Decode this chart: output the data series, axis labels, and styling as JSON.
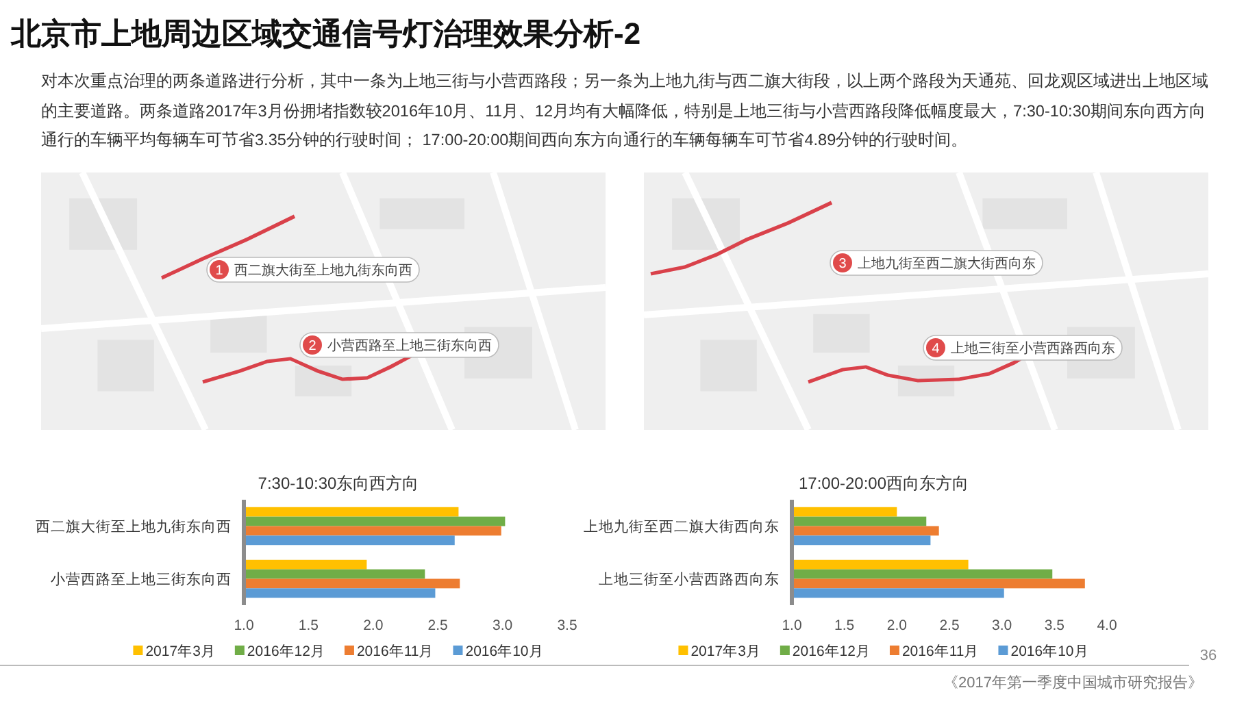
{
  "chart_data": [
    {
      "type": "other",
      "title": "北京市上地周边区域交通信号灯治理效果分析-2",
      "subtitle": "对本次重点治理的两条道路进行分析，其中一条为上地三街与小营西路段；另一条为上地九街与西二旗大街段，以上两个路段为天通苑、回龙观区域进出上地区域的主要道路。两条道路2017年3月份拥堵指数较2016年10月、11月、12月均有大幅降低，特别是上地三街与小营西路段降低幅度最大，7:30-10:30期间东向西方向通行的车辆平均每辆车可节省3.35分钟的行驶时间； 17:00-20:00期间西向东方向通行的车辆每辆车可节省4.89分钟的行驶时间。",
      "annotations": [
        "36",
        "《2017年第一季度中国城市研究报告》"
      ]
    },
    {
      "type": "bar",
      "orientation": "horizontal",
      "title": "7:30-10:30东向西方向",
      "categories": [
        "西二旗大街至上地九街东向西",
        "小营西路至上地三街东向西"
      ],
      "series": [
        {
          "name": "2017年3月",
          "color": "#ffc000",
          "values": [
            2.66,
            1.95
          ]
        },
        {
          "name": "2016年12月",
          "color": "#70ad47",
          "values": [
            3.02,
            2.4
          ]
        },
        {
          "name": "2016年11月",
          "color": "#ed7d31",
          "values": [
            2.99,
            2.67
          ]
        },
        {
          "name": "2016年10月",
          "color": "#5b9bd5",
          "values": [
            2.63,
            2.48
          ]
        }
      ],
      "xlim": [
        1,
        3.5
      ],
      "xticks": [
        {
          "value": 1,
          "label": "1.0"
        },
        1.5,
        {
          "value": 2,
          "label": "2.0"
        },
        2.5,
        {
          "value": 3,
          "label": "3.0"
        },
        3.5
      ],
      "legend": "bottom",
      "annotations": [
        "1 西二旗大街至上地九街东向西",
        "2 小营西路至上地三街东向西"
      ]
    },
    {
      "type": "bar",
      "orientation": "horizontal",
      "title": "17:00-20:00西向东方向",
      "categories": [
        "上地九街至西二旗大街西向东",
        "上地三街至小营西路西向东"
      ],
      "series": [
        {
          "name": "2017年3月",
          "color": "#ffc000",
          "values": [
            2.0,
            2.68
          ]
        },
        {
          "name": "2016年12月",
          "color": "#70ad47",
          "values": [
            2.28,
            3.48
          ]
        },
        {
          "name": "2016年11月",
          "color": "#ed7d31",
          "values": [
            2.4,
            3.79
          ]
        },
        {
          "name": "2016年10月",
          "color": "#5b9bd5",
          "values": [
            2.32,
            3.02
          ]
        }
      ],
      "xlim": [
        1,
        4
      ],
      "xticks": [
        {
          "value": 1,
          "label": "1.0"
        },
        1.5,
        {
          "value": 2,
          "label": "2.0"
        },
        2.5,
        {
          "value": 3,
          "label": "3.0"
        },
        3.5,
        {
          "value": 4,
          "label": "4.0"
        }
      ],
      "legend": "bottom",
      "annotations": [
        "3 上地九街至西二旗大街西向东",
        "4 上地三街至小营西路西向东"
      ]
    }
  ]
}
